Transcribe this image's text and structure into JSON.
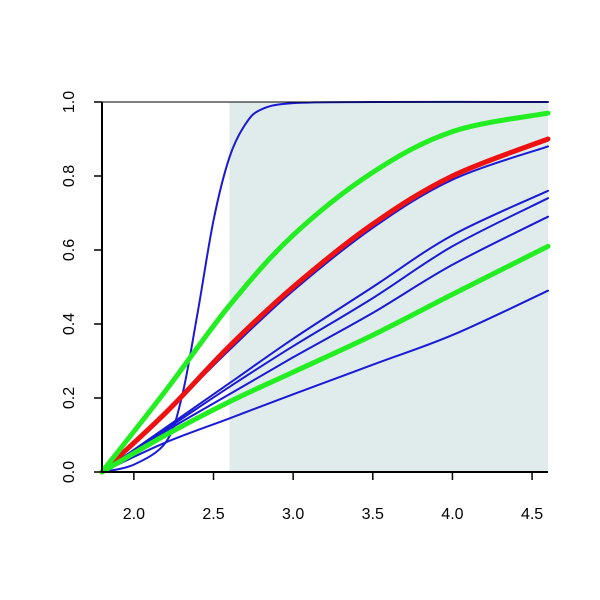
{
  "chart_data": {
    "type": "line",
    "title": "",
    "xlabel": "",
    "ylabel": "",
    "xlim": [
      1.8,
      4.6
    ],
    "ylim": [
      0.0,
      1.0
    ],
    "x_ticks": [
      2.0,
      2.5,
      3.0,
      3.5,
      4.0,
      4.5
    ],
    "x_tick_labels": [
      "2.0",
      "2.5",
      "3.0",
      "3.5",
      "4.0",
      "4.5"
    ],
    "y_ticks": [
      0.0,
      0.2,
      0.4,
      0.6,
      0.8,
      1.0
    ],
    "y_tick_labels": [
      "0.0",
      "0.2",
      "0.4",
      "0.6",
      "0.8",
      "1.0"
    ],
    "grid": false,
    "legend": "none",
    "shaded_region": {
      "x_from": 2.6,
      "x_to": 4.6,
      "color": "#e0ecec"
    },
    "colors": {
      "blue": "#1a1ad6",
      "red": "#ee1111",
      "green": "#22ee22",
      "axis": "#000000"
    },
    "series": [
      {
        "color": "blue",
        "width": "thin",
        "x": [
          1.8,
          2.0,
          2.2,
          2.3,
          2.4,
          2.5,
          2.6,
          2.7,
          2.8,
          3.0,
          3.5,
          4.6
        ],
        "y": [
          0.0,
          0.02,
          0.08,
          0.2,
          0.43,
          0.68,
          0.85,
          0.94,
          0.98,
          0.997,
          1.0,
          1.0
        ]
      },
      {
        "color": "blue",
        "width": "thin",
        "x": [
          1.8,
          2.2,
          2.6,
          3.0,
          3.5,
          4.0,
          4.6
        ],
        "y": [
          0.0,
          0.16,
          0.33,
          0.49,
          0.66,
          0.79,
          0.88
        ]
      },
      {
        "color": "blue",
        "width": "thin",
        "x": [
          1.8,
          2.2,
          2.6,
          3.0,
          3.5,
          4.0,
          4.6
        ],
        "y": [
          0.0,
          0.12,
          0.24,
          0.36,
          0.5,
          0.64,
          0.76
        ]
      },
      {
        "color": "blue",
        "width": "thin",
        "x": [
          1.8,
          2.2,
          2.6,
          3.0,
          3.5,
          4.0,
          4.6
        ],
        "y": [
          0.0,
          0.115,
          0.23,
          0.34,
          0.47,
          0.61,
          0.74
        ]
      },
      {
        "color": "blue",
        "width": "thin",
        "x": [
          1.8,
          2.2,
          2.6,
          3.0,
          3.5,
          4.0,
          4.6
        ],
        "y": [
          0.0,
          0.11,
          0.21,
          0.31,
          0.43,
          0.56,
          0.69
        ]
      },
      {
        "color": "blue",
        "width": "thin",
        "x": [
          1.8,
          2.2,
          2.6,
          3.0,
          3.5,
          4.0,
          4.6
        ],
        "y": [
          0.0,
          0.08,
          0.145,
          0.21,
          0.29,
          0.37,
          0.49
        ]
      },
      {
        "color": "red",
        "width": "thick",
        "x": [
          1.8,
          2.2,
          2.6,
          3.0,
          3.5,
          4.0,
          4.6
        ],
        "y": [
          0.0,
          0.16,
          0.34,
          0.5,
          0.67,
          0.8,
          0.9
        ]
      },
      {
        "color": "green",
        "width": "thick",
        "x": [
          1.8,
          2.2,
          2.6,
          3.0,
          3.5,
          4.0,
          4.6
        ],
        "y": [
          0.0,
          0.22,
          0.45,
          0.64,
          0.81,
          0.92,
          0.97
        ]
      },
      {
        "color": "green",
        "width": "thick",
        "x": [
          1.8,
          2.2,
          2.6,
          3.0,
          3.5,
          4.0,
          4.6
        ],
        "y": [
          0.0,
          0.1,
          0.19,
          0.27,
          0.37,
          0.48,
          0.61
        ]
      }
    ]
  }
}
